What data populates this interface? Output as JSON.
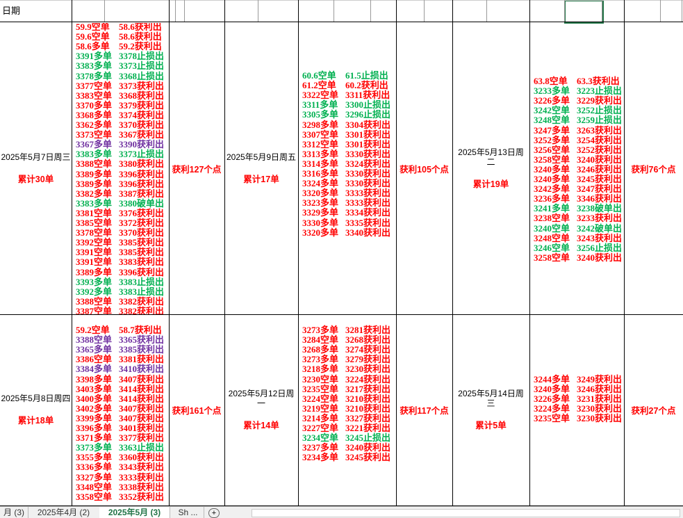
{
  "header": {
    "label": "日期"
  },
  "rows": [
    [
      {
        "date": "2025年5月7日周三",
        "count": "累计30单",
        "profit": "获利127个点",
        "trades": [
          {
            "entry": "59.9空单",
            "exit": "58.6获利出",
            "color": "#ff0000"
          },
          {
            "entry": "59.6空单",
            "exit": "58.6获利出",
            "color": "#ff0000"
          },
          {
            "entry": "58.6多单",
            "exit": "59.2获利出",
            "color": "#ff0000"
          },
          {
            "entry": "3391多单",
            "exit": "3378止损出",
            "color": "#00b050"
          },
          {
            "entry": "3383多单",
            "exit": "3373止损出",
            "color": "#00b050"
          },
          {
            "entry": "3378多单",
            "exit": "3368止损出",
            "color": "#00b050"
          },
          {
            "entry": "3377空单",
            "exit": "3373获利出",
            "color": "#ff0000"
          },
          {
            "entry": "3383空单",
            "exit": "3368获利出",
            "color": "#ff0000"
          },
          {
            "entry": "3370多单",
            "exit": "3379获利出",
            "color": "#ff0000"
          },
          {
            "entry": "3368多单",
            "exit": "3374获利出",
            "color": "#ff0000"
          },
          {
            "entry": "3362多单",
            "exit": "3370获利出",
            "color": "#ff0000"
          },
          {
            "entry": "3373空单",
            "exit": "3367获利出",
            "color": "#ff0000"
          },
          {
            "entry": "3367多单",
            "exit": "3390获利出",
            "color": "#7030a0"
          },
          {
            "entry": "3383多单",
            "exit": "3373止损出",
            "color": "#00b050"
          },
          {
            "entry": "3388空单",
            "exit": "3380获利出",
            "color": "#ff0000"
          },
          {
            "entry": "3389多单",
            "exit": "3396获利出",
            "color": "#ff0000"
          },
          {
            "entry": "3389多单",
            "exit": "3396获利出",
            "color": "#ff0000"
          },
          {
            "entry": "3382多单",
            "exit": "3387获利出",
            "color": "#ff0000"
          },
          {
            "entry": "3383多单",
            "exit": "3380破单出",
            "color": "#00b050"
          },
          {
            "entry": "3381空单",
            "exit": "3376获利出",
            "color": "#ff0000"
          },
          {
            "entry": "3385空单",
            "exit": "3372获利出",
            "color": "#ff0000"
          },
          {
            "entry": "3378空单",
            "exit": "3370获利出",
            "color": "#ff0000"
          },
          {
            "entry": "3392空单",
            "exit": "3385获利出",
            "color": "#ff0000"
          },
          {
            "entry": "3391空单",
            "exit": "3385获利出",
            "color": "#ff0000"
          },
          {
            "entry": "3391空单",
            "exit": "3383获利出",
            "color": "#ff0000"
          },
          {
            "entry": "3389多单",
            "exit": "3396获利出",
            "color": "#ff0000"
          },
          {
            "entry": "3393多单",
            "exit": "3383止损出",
            "color": "#00b050"
          },
          {
            "entry": "3392多单",
            "exit": "3383止损出",
            "color": "#00b050"
          },
          {
            "entry": "3388空单",
            "exit": "3382获利出",
            "color": "#ff0000"
          },
          {
            "entry": "3387空单",
            "exit": "3382获利出",
            "color": "#ff0000"
          }
        ]
      },
      {
        "date": "2025年5月9日周五",
        "count": "累计17单",
        "profit": "获利105个点",
        "trades": [
          {
            "entry": "60.6空单",
            "exit": "61.5止损出",
            "color": "#00b050"
          },
          {
            "entry": "61.2空单",
            "exit": "60.2获利出",
            "color": "#ff0000"
          },
          {
            "entry": "3322空单",
            "exit": "3311获利出",
            "color": "#ff0000"
          },
          {
            "entry": "3311多单",
            "exit": "3300止损出",
            "color": "#00b050"
          },
          {
            "entry": "3305多单",
            "exit": "3296止损出",
            "color": "#00b050"
          },
          {
            "entry": "3298多单",
            "exit": "3304获利出",
            "color": "#ff0000"
          },
          {
            "entry": "3307空单",
            "exit": "3301获利出",
            "color": "#ff0000"
          },
          {
            "entry": "3312空单",
            "exit": "3301获利出",
            "color": "#ff0000"
          },
          {
            "entry": "3313多单",
            "exit": "3330获利出",
            "color": "#ff0000"
          },
          {
            "entry": "3314多单",
            "exit": "3324获利出",
            "color": "#ff0000"
          },
          {
            "entry": "3316多单",
            "exit": "3330获利出",
            "color": "#ff0000"
          },
          {
            "entry": "3324多单",
            "exit": "3330获利出",
            "color": "#ff0000"
          },
          {
            "entry": "3320多单",
            "exit": "3333获利出",
            "color": "#ff0000"
          },
          {
            "entry": "3323多单",
            "exit": "3333获利出",
            "color": "#ff0000"
          },
          {
            "entry": "3329多单",
            "exit": "3334获利出",
            "color": "#ff0000"
          },
          {
            "entry": "3330多单",
            "exit": "3335获利出",
            "color": "#ff0000"
          },
          {
            "entry": "3320多单",
            "exit": "3340获利出",
            "color": "#ff0000"
          }
        ]
      },
      {
        "date": "2025年5月13日周二",
        "count": "累计19单",
        "profit": "获利76个点",
        "trades": [
          {
            "entry": "63.8空单",
            "exit": "63.3获利出",
            "color": "#ff0000"
          },
          {
            "entry": "3233多单",
            "exit": "3223止损出",
            "color": "#00b050"
          },
          {
            "entry": "3226多单",
            "exit": "3229获利出",
            "color": "#ff0000"
          },
          {
            "entry": "3242空单",
            "exit": "3252止损出",
            "color": "#00b050"
          },
          {
            "entry": "3248空单",
            "exit": "3259止损出",
            "color": "#00b050"
          },
          {
            "entry": "3247多单",
            "exit": "3263获利出",
            "color": "#ff0000"
          },
          {
            "entry": "3252多单",
            "exit": "3254获利出",
            "color": "#ff0000"
          },
          {
            "entry": "3256空单",
            "exit": "3252获利出",
            "color": "#ff0000"
          },
          {
            "entry": "3258空单",
            "exit": "3240获利出",
            "color": "#ff0000"
          },
          {
            "entry": "3240多单",
            "exit": "3246获利出",
            "color": "#ff0000"
          },
          {
            "entry": "3240多单",
            "exit": "3245获利出",
            "color": "#ff0000"
          },
          {
            "entry": "3242多单",
            "exit": "3247获利出",
            "color": "#ff0000"
          },
          {
            "entry": "3236多单",
            "exit": "3346获利出",
            "color": "#ff0000"
          },
          {
            "entry": "3241多单",
            "exit": "3238破单出",
            "color": "#00b050"
          },
          {
            "entry": "3238空单",
            "exit": "3233获利出",
            "color": "#ff0000"
          },
          {
            "entry": "3240空单",
            "exit": "3242破单出",
            "color": "#00b050"
          },
          {
            "entry": "3248空单",
            "exit": "3243获利出",
            "color": "#ff0000"
          },
          {
            "entry": "3246空单",
            "exit": "3256止损出",
            "color": "#00b050"
          },
          {
            "entry": "3258空单",
            "exit": "3240获利出",
            "color": "#ff0000"
          }
        ]
      }
    ],
    [
      {
        "date": "2025年5月8日周四",
        "count": "累计18单",
        "profit": "获利161个点",
        "trades": [
          {
            "entry": "59.2空单",
            "exit": "58.7获利出",
            "color": "#ff0000"
          },
          {
            "entry": "3388空单",
            "exit": "3365获利出",
            "color": "#7030a0"
          },
          {
            "entry": "3365多单",
            "exit": "3385获利出",
            "color": "#7030a0"
          },
          {
            "entry": "3386空单",
            "exit": "3381获利出",
            "color": "#ff0000"
          },
          {
            "entry": "3384多单",
            "exit": "3410获利出",
            "color": "#7030a0"
          },
          {
            "entry": "3398多单",
            "exit": "3407获利出",
            "color": "#ff0000"
          },
          {
            "entry": "3403多单",
            "exit": "3414获利出",
            "color": "#ff0000"
          },
          {
            "entry": "3400多单",
            "exit": "3414获利出",
            "color": "#ff0000"
          },
          {
            "entry": "3402多单",
            "exit": "3407获利出",
            "color": "#ff0000"
          },
          {
            "entry": "3399多单",
            "exit": "3407获利出",
            "color": "#ff0000"
          },
          {
            "entry": "3396多单",
            "exit": "3401获利出",
            "color": "#ff0000"
          },
          {
            "entry": "3371多单",
            "exit": "3377获利出",
            "color": "#ff0000"
          },
          {
            "entry": "3373多单",
            "exit": "3363止损出",
            "color": "#00b050"
          },
          {
            "entry": "3355多单",
            "exit": "3360获利出",
            "color": "#ff0000"
          },
          {
            "entry": "3336多单",
            "exit": "3343获利出",
            "color": "#ff0000"
          },
          {
            "entry": "3327多单",
            "exit": "3333获利出",
            "color": "#ff0000"
          },
          {
            "entry": "3348空单",
            "exit": "3338获利出",
            "color": "#ff0000"
          },
          {
            "entry": "3358空单",
            "exit": "3352获利出",
            "color": "#ff0000"
          }
        ]
      },
      {
        "date": "2025年5月12日周一",
        "count": "累计14单",
        "profit": "获利117个点",
        "trades": [
          {
            "entry": "3273多单",
            "exit": "3281获利出",
            "color": "#ff0000"
          },
          {
            "entry": "3284空单",
            "exit": "3268获利出",
            "color": "#ff0000"
          },
          {
            "entry": "3268多单",
            "exit": "3274获利出",
            "color": "#ff0000"
          },
          {
            "entry": "3273多单",
            "exit": "3279获利出",
            "color": "#ff0000"
          },
          {
            "entry": "3218多单",
            "exit": "3230获利出",
            "color": "#ff0000"
          },
          {
            "entry": "3230空单",
            "exit": "3224获利出",
            "color": "#ff0000"
          },
          {
            "entry": "3235空单",
            "exit": "3217获利出",
            "color": "#ff0000"
          },
          {
            "entry": "3224空单",
            "exit": "3210获利出",
            "color": "#ff0000"
          },
          {
            "entry": "3219空单",
            "exit": "3210获利出",
            "color": "#ff0000"
          },
          {
            "entry": "3214多单",
            "exit": "3327获利出",
            "color": "#ff0000"
          },
          {
            "entry": "3227空单",
            "exit": "3221获利出",
            "color": "#ff0000"
          },
          {
            "entry": "3234空单",
            "exit": "3245止损出",
            "color": "#00b050"
          },
          {
            "entry": "3237多单",
            "exit": "3240获利出",
            "color": "#ff0000"
          },
          {
            "entry": "3234多单",
            "exit": "3245获利出",
            "color": "#ff0000"
          }
        ]
      },
      {
        "date": "2025年5月14日周三",
        "count": "累计5单",
        "profit": "获利27个点",
        "trades": [
          {
            "entry": "3244多单",
            "exit": "3249获利出",
            "color": "#ff0000"
          },
          {
            "entry": "3240多单",
            "exit": "3246获利出",
            "color": "#ff0000"
          },
          {
            "entry": "3226多单",
            "exit": "3231获利出",
            "color": "#ff0000"
          },
          {
            "entry": "3224多单",
            "exit": "3230获利出",
            "color": "#ff0000"
          },
          {
            "entry": "3235空单",
            "exit": "3230获利出",
            "color": "#ff0000"
          }
        ]
      }
    ]
  ],
  "tabs": [
    "月 (3)",
    "2025年4月 (2)",
    "2025年5月 (3)",
    "Sh ..."
  ]
}
